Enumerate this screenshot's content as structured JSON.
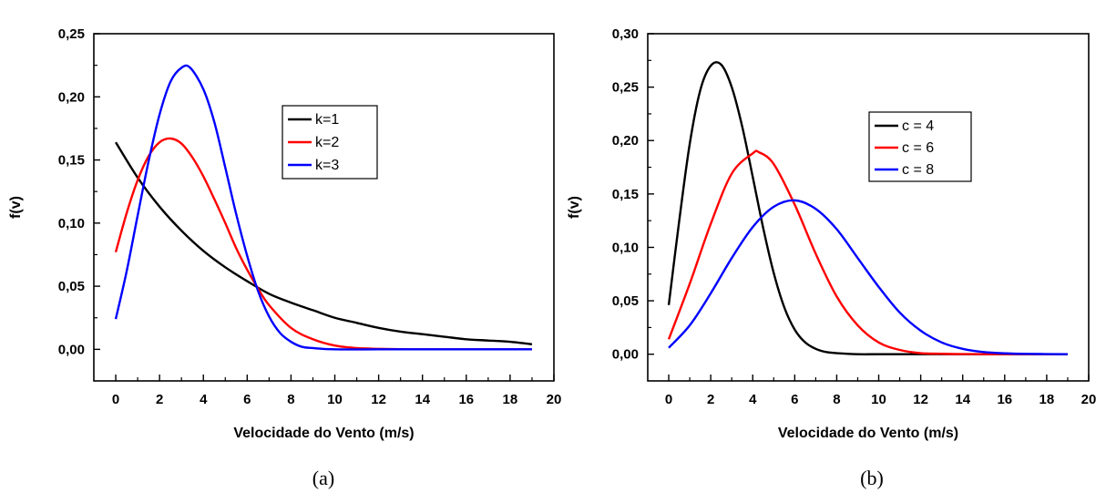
{
  "chart_data": [
    {
      "type": "line",
      "caption": "(a)",
      "xlabel": "Velocidade do Vento (m/s)",
      "ylabel": "f(v)",
      "xlim": [
        -1,
        20
      ],
      "ylim": [
        -0.025,
        0.25
      ],
      "xticks": [
        0,
        2,
        4,
        6,
        8,
        10,
        12,
        14,
        16,
        18,
        20
      ],
      "xtick_labels": [
        "0",
        "2",
        "4",
        "6",
        "8",
        "10",
        "12",
        "14",
        "16",
        "18",
        "20"
      ],
      "yticks": [
        0,
        0.05,
        0.1,
        0.15,
        0.2,
        0.25
      ],
      "ytick_labels": [
        "0,00",
        "0,05",
        "0,10",
        "0,15",
        "0,20",
        "0,25"
      ],
      "legend_position": "upper-right",
      "series": [
        {
          "name": "k=1",
          "color": "#000000",
          "x": [
            0,
            1,
            2,
            3,
            4,
            5,
            6,
            7,
            8,
            9,
            10,
            11,
            12,
            13,
            14,
            15,
            16,
            17,
            18,
            19
          ],
          "values": [
            0.164,
            0.136,
            0.113,
            0.094,
            0.078,
            0.065,
            0.054,
            0.044,
            0.037,
            0.031,
            0.025,
            0.021,
            0.017,
            0.014,
            0.012,
            0.01,
            0.008,
            0.007,
            0.006,
            0.004
          ]
        },
        {
          "name": "k=2",
          "color": "#ff0000",
          "x": [
            0,
            0.5,
            1,
            1.5,
            2,
            2.5,
            3,
            3.5,
            4,
            4.5,
            5,
            5.5,
            6,
            6.5,
            7,
            8,
            9,
            10,
            11,
            12,
            13,
            14,
            16,
            19
          ],
          "values": [
            0.077,
            0.108,
            0.134,
            0.153,
            0.164,
            0.167,
            0.163,
            0.152,
            0.137,
            0.119,
            0.1,
            0.08,
            0.063,
            0.048,
            0.035,
            0.017,
            0.008,
            0.003,
            0.001,
            0.0004,
            0.0001,
            0.0,
            0.0,
            0.0
          ]
        },
        {
          "name": "k=3",
          "color": "#0000ff",
          "x": [
            0,
            0.5,
            1,
            1.5,
            2,
            2.5,
            3,
            3.4,
            4,
            4.5,
            5,
            5.5,
            6,
            6.5,
            7,
            7.5,
            8,
            8.5,
            9,
            10,
            12,
            14,
            19
          ],
          "values": [
            0.024,
            0.062,
            0.106,
            0.149,
            0.186,
            0.212,
            0.223,
            0.223,
            0.206,
            0.18,
            0.144,
            0.107,
            0.074,
            0.046,
            0.026,
            0.013,
            0.006,
            0.002,
            0.001,
            0.0,
            0.0,
            0.0,
            0.0
          ]
        }
      ]
    },
    {
      "type": "line",
      "caption": "(b)",
      "xlabel": "Velocidade do Vento (m/s)",
      "ylabel": "f(v)",
      "xlim": [
        -1,
        20
      ],
      "ylim": [
        -0.025,
        0.3
      ],
      "xticks": [
        0,
        2,
        4,
        6,
        8,
        10,
        12,
        14,
        16,
        18,
        20
      ],
      "xtick_labels": [
        "0",
        "2",
        "4",
        "6",
        "8",
        "10",
        "12",
        "14",
        "16",
        "18",
        "20"
      ],
      "yticks": [
        0,
        0.05,
        0.1,
        0.15,
        0.2,
        0.25,
        0.3
      ],
      "ytick_labels": [
        "0,00",
        "0,05",
        "0,10",
        "0,15",
        "0,20",
        "0,25",
        "0,30"
      ],
      "legend_position": "upper-right",
      "series": [
        {
          "name": "c = 4",
          "color": "#000000",
          "x": [
            0,
            0.5,
            1,
            1.5,
            2,
            2.5,
            3,
            3.5,
            4,
            4.5,
            5,
            5.5,
            6,
            6.5,
            7,
            7.5,
            8,
            9,
            10,
            12,
            15,
            19
          ],
          "values": [
            0.046,
            0.125,
            0.197,
            0.247,
            0.27,
            0.271,
            0.25,
            0.213,
            0.166,
            0.118,
            0.076,
            0.044,
            0.023,
            0.011,
            0.005,
            0.002,
            0.001,
            0.0,
            0.0,
            0.0,
            0.0,
            0.0
          ]
        },
        {
          "name": "c = 6",
          "color": "#ff0000",
          "x": [
            0,
            1,
            2,
            3,
            4,
            4.3,
            5,
            6,
            7,
            8,
            9,
            10,
            11,
            12,
            13,
            14,
            16,
            19
          ],
          "values": [
            0.014,
            0.066,
            0.122,
            0.169,
            0.188,
            0.189,
            0.178,
            0.14,
            0.094,
            0.054,
            0.027,
            0.011,
            0.004,
            0.001,
            0.0004,
            0.0001,
            0.0,
            0.0
          ]
        },
        {
          "name": "c = 8",
          "color": "#0000ff",
          "x": [
            0,
            1,
            2,
            3,
            4,
            5,
            6,
            7,
            8,
            9,
            10,
            11,
            12,
            13,
            14,
            15,
            16,
            17,
            19
          ],
          "values": [
            0.006,
            0.027,
            0.057,
            0.09,
            0.119,
            0.138,
            0.144,
            0.136,
            0.117,
            0.09,
            0.063,
            0.039,
            0.022,
            0.011,
            0.005,
            0.002,
            0.0008,
            0.0003,
            0.0
          ]
        }
      ]
    }
  ]
}
